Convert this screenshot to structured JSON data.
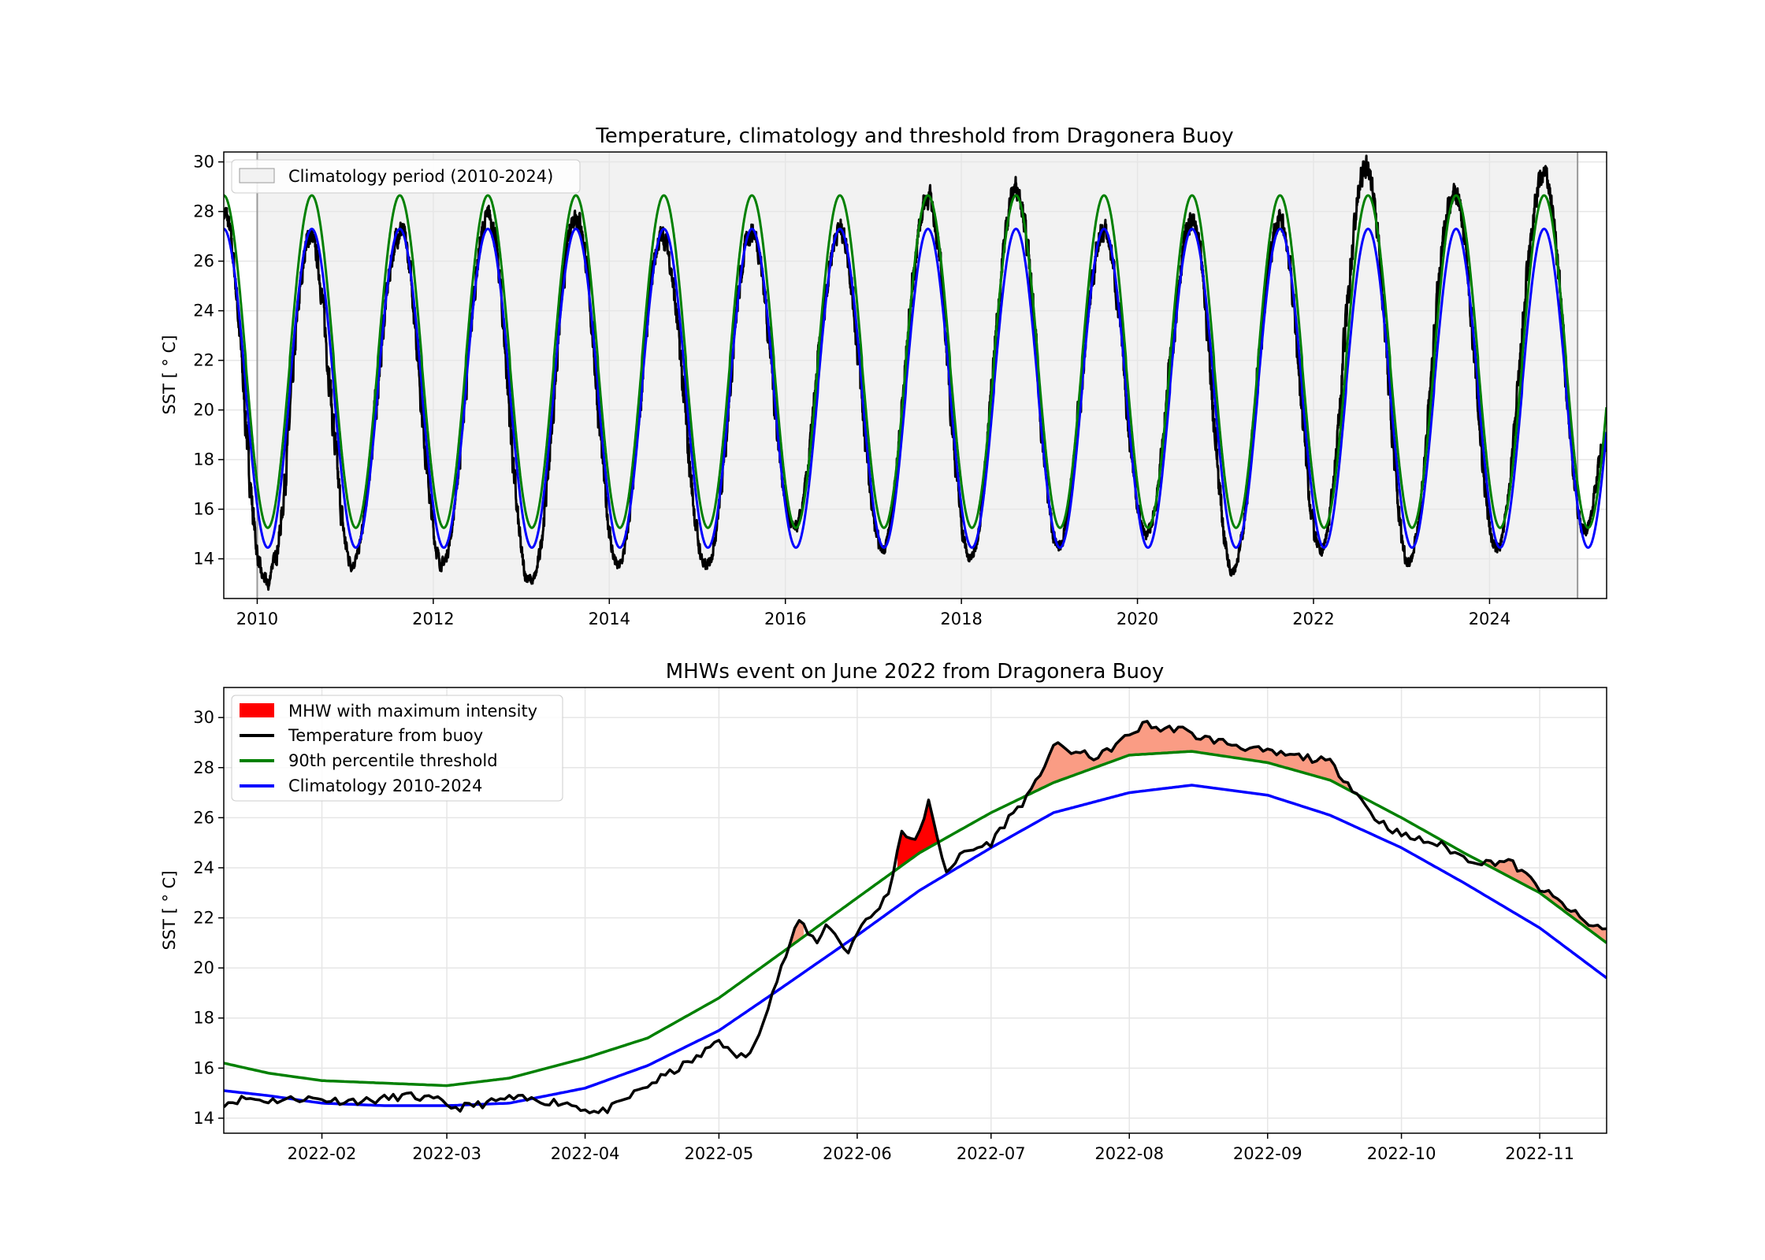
{
  "chart_data": [
    {
      "type": "line",
      "title": "Temperature, climatology and threshold from Dragonera Buoy",
      "xlabel": "",
      "ylabel": "SST [$^\\circ$C]",
      "ylabel_display": "SST [ ° C]",
      "xlim": [
        2009.62,
        2025.33
      ],
      "ylim": [
        12.4,
        30.4
      ],
      "xticks": [
        2010,
        2012,
        2014,
        2016,
        2018,
        2020,
        2022,
        2024
      ],
      "xtick_labels": [
        "2010",
        "2012",
        "2014",
        "2016",
        "2018",
        "2020",
        "2022",
        "2024"
      ],
      "yticks": [
        14,
        16,
        18,
        20,
        22,
        24,
        26,
        28,
        30
      ],
      "ytick_labels": [
        "14",
        "16",
        "18",
        "20",
        "22",
        "24",
        "26",
        "28",
        "30"
      ],
      "grid": true,
      "legend_position": "top-left",
      "shaded_period": {
        "label": "Climatology period (2010-2024)",
        "x_start": 2010.0,
        "x_end": 2025.0,
        "color": "#f2f2f2",
        "edge_color": "#999999"
      },
      "legend": [
        {
          "label": "Climatology period (2010-2024)",
          "kind": "patch",
          "color": "#f2f2f2"
        }
      ],
      "series": [
        {
          "kind": "climatology",
          "color": "#0000ff",
          "min": 14.45,
          "max": 27.3,
          "peak_time": "mid-August"
        },
        {
          "kind": "threshold",
          "color": "#008000",
          "min": 15.25,
          "max": 28.65,
          "peak_time": "mid-August"
        },
        {
          "kind": "observed",
          "color": "#000000",
          "x": [
            2009.62,
            2010.08,
            2010.13,
            2010.17,
            2010.6,
            2011.08,
            2011.63,
            2012.1,
            2012.63,
            2013.08,
            2013.12,
            2013.62,
            2014.1,
            2014.6,
            2015.1,
            2015.62,
            2016.1,
            2016.62,
            2017.1,
            2017.62,
            2018.1,
            2018.62,
            2019.1,
            2019.62,
            2020.1,
            2020.62,
            2021.08,
            2021.62,
            2022.08,
            2022.6,
            2023.08,
            2023.6,
            2024.08,
            2024.62,
            2025.08,
            2025.33
          ],
          "y": [
            28.0,
            13.2,
            12.9,
            13.8,
            27.0,
            13.8,
            27.2,
            13.8,
            27.8,
            13.2,
            13.1,
            27.9,
            13.7,
            27.0,
            13.7,
            27.2,
            15.2,
            27.3,
            14.4,
            28.6,
            14.0,
            29.0,
            14.5,
            27.2,
            15.0,
            27.6,
            13.6,
            27.6,
            14.3,
            29.8,
            13.9,
            28.8,
            14.4,
            29.5,
            15.1,
            18.8
          ]
        }
      ]
    },
    {
      "type": "line",
      "title": "MHWs event on June 2022 from Dragonera Buoy",
      "xlabel": "",
      "ylabel": "SST [$^\\circ$C]",
      "ylabel_display": "SST [ ° C]",
      "xlim": [
        "2022-01-10",
        "2022-11-16"
      ],
      "ylim": [
        13.4,
        31.2
      ],
      "xticks": [
        "2022-02-01",
        "2022-03-01",
        "2022-04-01",
        "2022-05-01",
        "2022-06-01",
        "2022-07-01",
        "2022-08-01",
        "2022-09-01",
        "2022-10-01",
        "2022-11-01"
      ],
      "xtick_labels": [
        "2022-02",
        "2022-03",
        "2022-04",
        "2022-05",
        "2022-06",
        "2022-07",
        "2022-08",
        "2022-09",
        "2022-10",
        "2022-11"
      ],
      "yticks": [
        14,
        16,
        18,
        20,
        22,
        24,
        26,
        28,
        30
      ],
      "ytick_labels": [
        "14",
        "16",
        "18",
        "20",
        "22",
        "24",
        "26",
        "28",
        "30"
      ],
      "grid": true,
      "legend_position": "top-left",
      "mhw_fill_color": "#fa9c84",
      "mhw_max_color": "#ff0000",
      "mhw_max_window": [
        "2022-06-11",
        "2022-06-19"
      ],
      "legend": [
        {
          "label": "MHW with maximum intensity",
          "kind": "patch",
          "color": "#ff0000"
        },
        {
          "label": "Temperature from buoy",
          "kind": "line",
          "color": "#000000"
        },
        {
          "label": "90th percentile threshold",
          "kind": "line",
          "color": "#008000"
        },
        {
          "label": "Climatology 2010-2024",
          "kind": "line",
          "color": "#0000ff"
        }
      ],
      "series": [
        {
          "name": "Temperature from buoy",
          "color": "#000000",
          "x": [
            "2022-01-10",
            "2022-01-15",
            "2022-01-20",
            "2022-01-28",
            "2022-02-05",
            "2022-02-12",
            "2022-02-20",
            "2022-02-27",
            "2022-03-03",
            "2022-03-10",
            "2022-03-15",
            "2022-03-22",
            "2022-03-28",
            "2022-04-04",
            "2022-04-08",
            "2022-04-13",
            "2022-04-20",
            "2022-04-27",
            "2022-05-01",
            "2022-05-04",
            "2022-05-08",
            "2022-05-12",
            "2022-05-16",
            "2022-05-19",
            "2022-05-23",
            "2022-05-25",
            "2022-05-30",
            "2022-06-01",
            "2022-06-05",
            "2022-06-08",
            "2022-06-11",
            "2022-06-14",
            "2022-06-17",
            "2022-06-19",
            "2022-06-21",
            "2022-06-25",
            "2022-06-28",
            "2022-07-01",
            "2022-07-05",
            "2022-07-10",
            "2022-07-15",
            "2022-07-20",
            "2022-07-25",
            "2022-08-01",
            "2022-08-05",
            "2022-08-08",
            "2022-08-12",
            "2022-08-15",
            "2022-08-20",
            "2022-08-25",
            "2022-09-01",
            "2022-09-05",
            "2022-09-10",
            "2022-09-15",
            "2022-09-20",
            "2022-09-25",
            "2022-10-01",
            "2022-10-10",
            "2022-10-15",
            "2022-10-20",
            "2022-10-25",
            "2022-11-01",
            "2022-11-08",
            "2022-11-12",
            "2022-11-16"
          ],
          "y": [
            14.6,
            14.8,
            14.7,
            14.8,
            14.7,
            14.7,
            14.9,
            14.7,
            14.4,
            14.6,
            14.8,
            14.7,
            14.6,
            14.2,
            14.5,
            15.1,
            15.8,
            16.5,
            17.2,
            16.5,
            16.5,
            18.5,
            20.5,
            21.9,
            21.0,
            21.8,
            20.6,
            21.5,
            22.2,
            23.0,
            25.5,
            25.0,
            26.6,
            25.1,
            23.9,
            24.6,
            24.8,
            25.0,
            26.0,
            27.0,
            28.9,
            28.6,
            28.4,
            29.3,
            29.8,
            29.5,
            29.6,
            29.3,
            29.1,
            28.9,
            28.6,
            28.5,
            28.4,
            28.2,
            27.2,
            26.0,
            25.3,
            24.9,
            24.4,
            24.2,
            24.3,
            23.2,
            22.3,
            21.7,
            21.6
          ]
        },
        {
          "name": "90th percentile threshold",
          "color": "#008000",
          "x": [
            "2022-01-10",
            "2022-01-20",
            "2022-02-01",
            "2022-02-15",
            "2022-03-01",
            "2022-03-15",
            "2022-04-01",
            "2022-04-15",
            "2022-05-01",
            "2022-05-15",
            "2022-06-01",
            "2022-06-15",
            "2022-07-01",
            "2022-07-15",
            "2022-08-01",
            "2022-08-15",
            "2022-09-01",
            "2022-09-15",
            "2022-10-01",
            "2022-10-15",
            "2022-11-01",
            "2022-11-16"
          ],
          "y": [
            16.2,
            15.8,
            15.5,
            15.4,
            15.3,
            15.6,
            16.4,
            17.2,
            18.8,
            20.6,
            22.8,
            24.6,
            26.2,
            27.4,
            28.5,
            28.65,
            28.2,
            27.5,
            26.0,
            24.6,
            23.0,
            21.0
          ]
        },
        {
          "name": "Climatology 2010-2024",
          "color": "#0000ff",
          "x": [
            "2022-01-10",
            "2022-01-20",
            "2022-02-01",
            "2022-02-15",
            "2022-03-01",
            "2022-03-15",
            "2022-04-01",
            "2022-04-15",
            "2022-05-01",
            "2022-05-15",
            "2022-06-01",
            "2022-06-15",
            "2022-07-01",
            "2022-07-15",
            "2022-08-01",
            "2022-08-15",
            "2022-09-01",
            "2022-09-15",
            "2022-10-01",
            "2022-10-15",
            "2022-11-01",
            "2022-11-16"
          ],
          "y": [
            15.1,
            14.9,
            14.6,
            14.5,
            14.5,
            14.6,
            15.2,
            16.1,
            17.5,
            19.2,
            21.3,
            23.1,
            24.8,
            26.2,
            27.0,
            27.3,
            26.9,
            26.1,
            24.8,
            23.4,
            21.6,
            19.6
          ]
        }
      ]
    }
  ]
}
